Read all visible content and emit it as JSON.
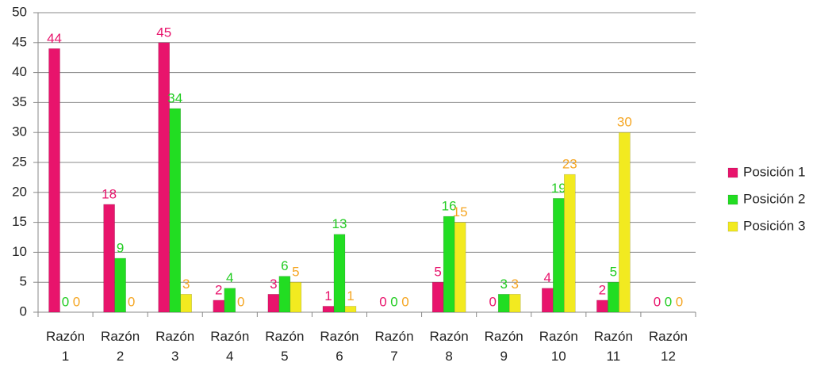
{
  "chart_data": {
    "type": "bar",
    "categories": [
      "Razón 1",
      "Razón 2",
      "Razón 3",
      "Razón 4",
      "Razón 5",
      "Razón 6",
      "Razón 7",
      "Razón 8",
      "Razón 9",
      "Razón 10",
      "Razón 11",
      "Razón 12"
    ],
    "series": [
      {
        "name": "Posición 1",
        "color": "#e8146c",
        "label_color": "#e8146c",
        "values": [
          44,
          18,
          45,
          2,
          3,
          1,
          0,
          5,
          0,
          4,
          2,
          0
        ]
      },
      {
        "name": "Posición 2",
        "color": "#22dd22",
        "label_color": "#22cc22",
        "values": [
          0,
          9,
          34,
          4,
          6,
          13,
          0,
          16,
          3,
          19,
          5,
          0
        ]
      },
      {
        "name": "Posición 3",
        "color": "#f2ea20",
        "label_color": "#f5a623",
        "values": [
          0,
          0,
          3,
          0,
          5,
          1,
          0,
          15,
          3,
          23,
          30,
          0
        ]
      }
    ],
    "ylim": [
      0,
      50
    ],
    "yticks": [
      0,
      5,
      10,
      15,
      20,
      25,
      30,
      35,
      40,
      45,
      50
    ],
    "grid": true,
    "legend": "right"
  }
}
